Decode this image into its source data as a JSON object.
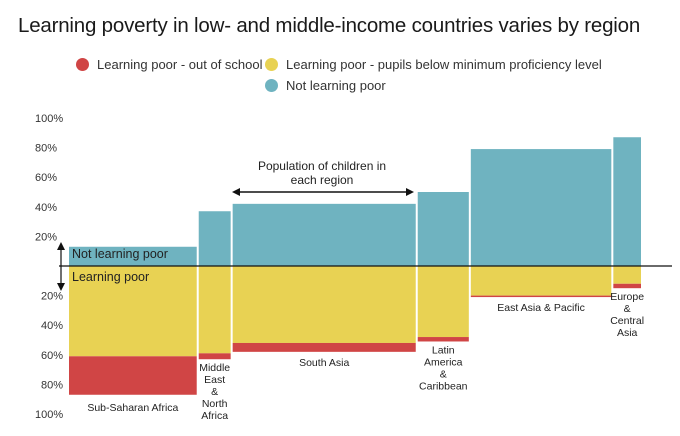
{
  "chart_data": {
    "type": "bar",
    "title": "Learning poverty in low- and middle-income countries varies by region",
    "subtitle": "",
    "legend": [
      {
        "name": "Learning poor - out of school",
        "color": "#d04545"
      },
      {
        "name": "Learning poor - pupils below minimum proficiency level",
        "color": "#e8d253"
      },
      {
        "name": "Not learning poor",
        "color": "#6fb3c0"
      }
    ],
    "legend_position": "top",
    "y_ticks_up": [
      "100%",
      "80%",
      "60%",
      "40%",
      "20%"
    ],
    "y_ticks_down": [
      "20%",
      "40%",
      "60%",
      "80%",
      "100%"
    ],
    "y_range": [
      -100,
      100
    ],
    "variable_width_note": "Population of children in each region",
    "zone_labels": {
      "up": "Not learning poor",
      "down": "Learning poor"
    },
    "categories": [
      "Sub-Saharan Africa",
      "Middle East & North Africa",
      "South Asia",
      "Latin America & Caribbean",
      "East Asia & Pacific",
      "Europe & Central Asia"
    ],
    "category_label_lines": [
      [
        "Sub-Saharan Africa"
      ],
      [
        "Middle",
        "East",
        "&",
        "North",
        "Africa"
      ],
      [
        "South Asia"
      ],
      [
        "Latin",
        "America",
        "&",
        "Caribbean"
      ],
      [
        "East Asia & Pacific"
      ],
      [
        "Europe",
        "&",
        "Central",
        "Asia"
      ]
    ],
    "population_share": [
      0.3,
      0.075,
      0.43,
      0.12,
      0.33,
      0.065
    ],
    "series": [
      {
        "name": "Not learning poor",
        "color": "#6fb3c0",
        "values": [
          13,
          37,
          42,
          50,
          79,
          87
        ]
      },
      {
        "name": "Learning poor - pupils below minimum proficiency level",
        "color": "#e8d253",
        "values": [
          61,
          59,
          52,
          48,
          20,
          12
        ]
      },
      {
        "name": "Learning poor - out of school",
        "color": "#d04545",
        "values": [
          26,
          4,
          6,
          3,
          1,
          3
        ]
      }
    ]
  }
}
